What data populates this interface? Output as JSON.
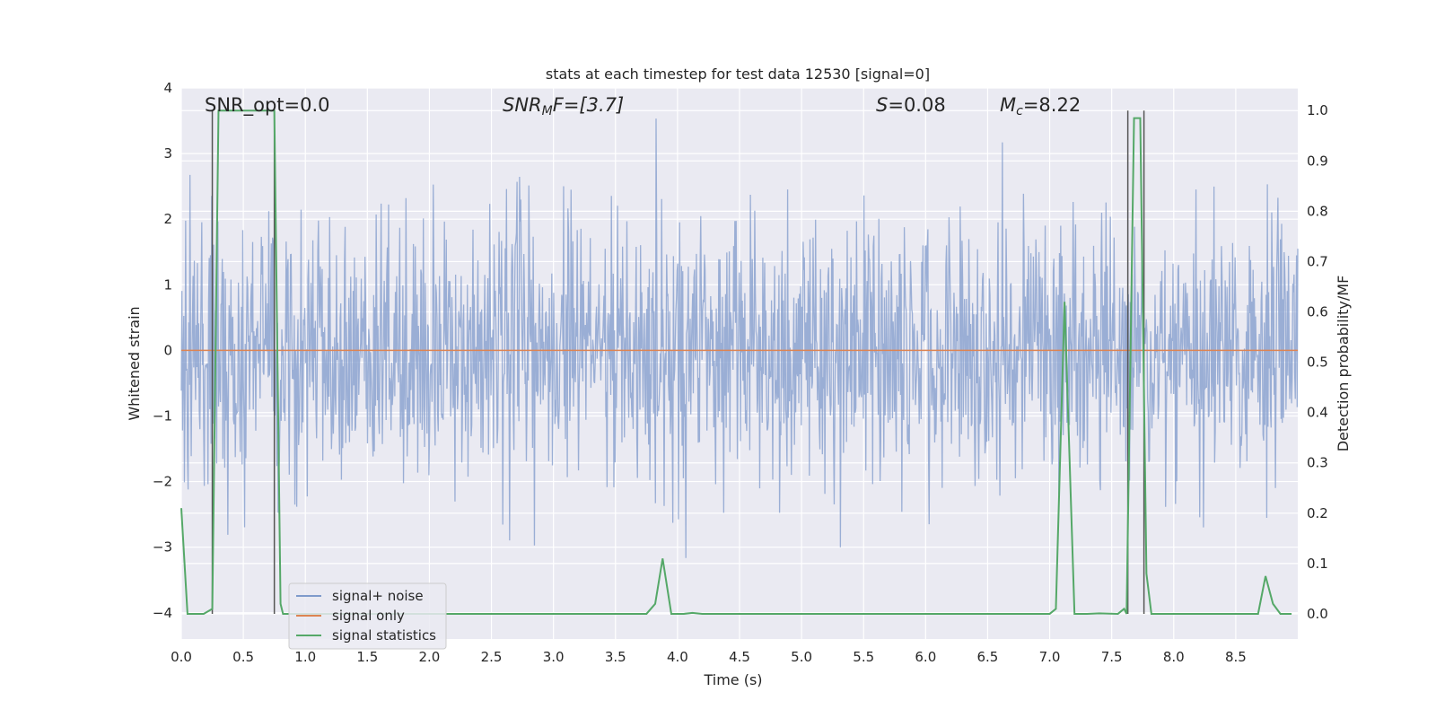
{
  "chart_data": {
    "type": "line",
    "title": "stats at each timestep for test data 12530 [signal=0]",
    "xlabel": "Time (s)",
    "ylabel": "Whitened strain",
    "ylabel_right": "Detection probability/MF",
    "xlim": [
      0.0,
      9.0
    ],
    "ylim": [
      -4.4,
      4.0
    ],
    "ylim_right": [
      -0.05,
      1.045
    ],
    "x_ticks": [
      "0.0",
      "0.5",
      "1.0",
      "1.5",
      "2.0",
      "2.5",
      "3.0",
      "3.5",
      "4.0",
      "4.5",
      "5.0",
      "5.5",
      "6.0",
      "6.5",
      "7.0",
      "7.5",
      "8.0",
      "8.5"
    ],
    "y_ticks": [
      "4",
      "3",
      "2",
      "1",
      "0",
      "−1",
      "−2",
      "−3",
      "−4"
    ],
    "y_ticks_right": [
      "1.0",
      "0.9",
      "0.8",
      "0.7",
      "0.6",
      "0.5",
      "0.4",
      "0.3",
      "0.2",
      "0.1",
      "0.0"
    ],
    "grid": true,
    "annotations": {
      "snr_opt": "SNR_opt=0.0",
      "snr_mf_sym": "SNR",
      "snr_mf_sub": "M",
      "snr_mf_rest": "F=[3.7]",
      "s_sym": "S",
      "s_rest": "=0.08",
      "mc_sym": "M",
      "mc_sub": "c",
      "mc_rest": "=8.22"
    },
    "legend": {
      "position": "lower-left",
      "entries": [
        "signal+ noise",
        "signal only",
        "signal statistics"
      ]
    },
    "colors": {
      "noise": "#7f9acb",
      "signal": "#dd8452",
      "stats": "#55a868",
      "vline": "#555555",
      "background": "#eaeaf2",
      "grid": "#ffffff"
    },
    "series": [
      {
        "name": "signal+ noise",
        "axis": "left",
        "description": "whitened strain noise, roughly gaussian in [-4, 3.6]",
        "noise_sigma": 1.0,
        "n_points": 1800
      },
      {
        "name": "signal only",
        "axis": "left",
        "x": [
          0.0,
          9.0
        ],
        "y": [
          0.0,
          0.0
        ]
      },
      {
        "name": "signal statistics",
        "axis": "right",
        "x": [
          0.0,
          0.05,
          0.18,
          0.25,
          0.3,
          0.4,
          0.5,
          0.6,
          0.7,
          0.75,
          0.8,
          0.82,
          1.0,
          2.0,
          3.0,
          3.75,
          3.82,
          3.88,
          3.95,
          4.05,
          4.12,
          4.2,
          5.0,
          6.0,
          7.0,
          7.05,
          7.12,
          7.2,
          7.3,
          7.4,
          7.55,
          7.6,
          7.62,
          7.68,
          7.73,
          7.78,
          7.82,
          7.9,
          8.0,
          8.5,
          8.68,
          8.74,
          8.8,
          8.86,
          8.95
        ],
        "y": [
          0.21,
          0.0,
          0.0,
          0.01,
          1.0,
          1.0,
          1.0,
          1.0,
          1.0,
          1.0,
          0.02,
          0.0,
          0.0,
          0.0,
          0.0,
          0.0,
          0.02,
          0.11,
          0.0,
          0.0,
          0.002,
          0.0,
          0.0,
          0.0,
          0.0,
          0.01,
          0.62,
          0.0,
          0.0,
          0.001,
          0.0,
          0.01,
          0.0,
          0.985,
          0.985,
          0.08,
          0.0,
          0.0,
          0.0,
          0.0,
          0.0,
          0.075,
          0.02,
          0.0,
          0.0
        ]
      }
    ],
    "vertical_lines_x": [
      0.25,
      0.75,
      7.63,
      7.76
    ]
  }
}
